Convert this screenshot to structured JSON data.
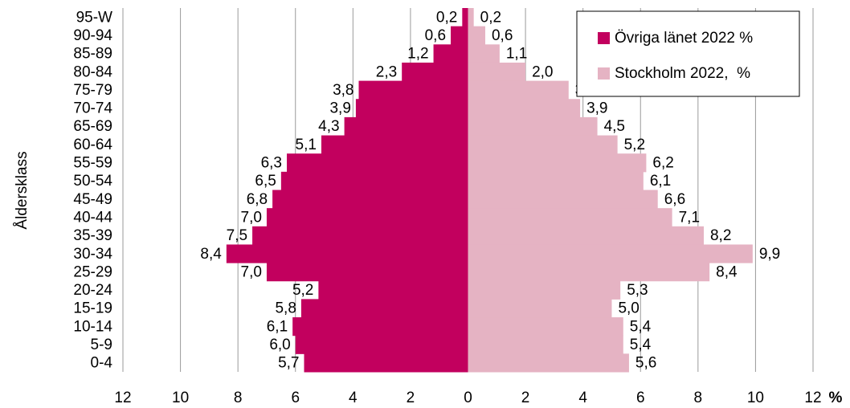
{
  "chart_data": {
    "type": "pyramid",
    "ylabel": "Åldersklass",
    "xunit": "%",
    "categories": [
      "95-W",
      "90-94",
      "85-89",
      "80-84",
      "75-79",
      "70-74",
      "65-69",
      "60-64",
      "55-59",
      "50-54",
      "45-49",
      "40-44",
      "35-39",
      "30-34",
      "25-29",
      "20-24",
      "15-19",
      "10-14",
      "5-9",
      "0-4"
    ],
    "series": [
      {
        "name": "Övriga länet 2022 %",
        "color": "#c2005e",
        "values": [
          -0.2,
          -0.6,
          -1.2,
          -2.3,
          -3.8,
          -3.9,
          -4.3,
          -5.1,
          -6.3,
          -6.5,
          -6.8,
          -7.0,
          -7.5,
          -8.4,
          -7.0,
          -5.2,
          -5.8,
          -6.1,
          -6.0,
          -5.7
        ],
        "value_labels": [
          "0,2",
          "0,6",
          "1,2",
          "2,3",
          "3,8",
          "3,9",
          "4,3",
          "5,1",
          "6,3",
          "6,5",
          "6,8",
          "7,0",
          "7,5",
          "8,4",
          "7,0",
          "5,2",
          "5,8",
          "6,1",
          "6,0",
          "5,7"
        ]
      },
      {
        "name": "Stockholm 2022,  %",
        "color": "#e5b3c3",
        "values": [
          0.2,
          0.6,
          1.1,
          2.0,
          3.5,
          3.9,
          4.5,
          5.2,
          6.2,
          6.1,
          6.6,
          7.1,
          8.2,
          9.9,
          8.4,
          5.3,
          5.0,
          5.4,
          5.4,
          5.6
        ],
        "value_labels": [
          "0,2",
          "0,6",
          "1,1",
          "2,0",
          "3,5",
          "3,9",
          "4,5",
          "5,2",
          "6,2",
          "6,1",
          "6,6",
          "7,1",
          "8,2",
          "9,9",
          "8,4",
          "5,3",
          "5,0",
          "5,4",
          "5,4",
          "5,6"
        ]
      }
    ],
    "xlim": [
      -12,
      12
    ],
    "xticks": [
      {
        "value": -12,
        "label": "12"
      },
      {
        "value": -10,
        "label": "10"
      },
      {
        "value": -8,
        "label": "8"
      },
      {
        "value": -6,
        "label": "6"
      },
      {
        "value": -4,
        "label": "4"
      },
      {
        "value": -2,
        "label": "2"
      },
      0,
      2,
      4,
      6,
      8,
      10,
      12
    ],
    "grid": true,
    "legend": "top-right"
  }
}
